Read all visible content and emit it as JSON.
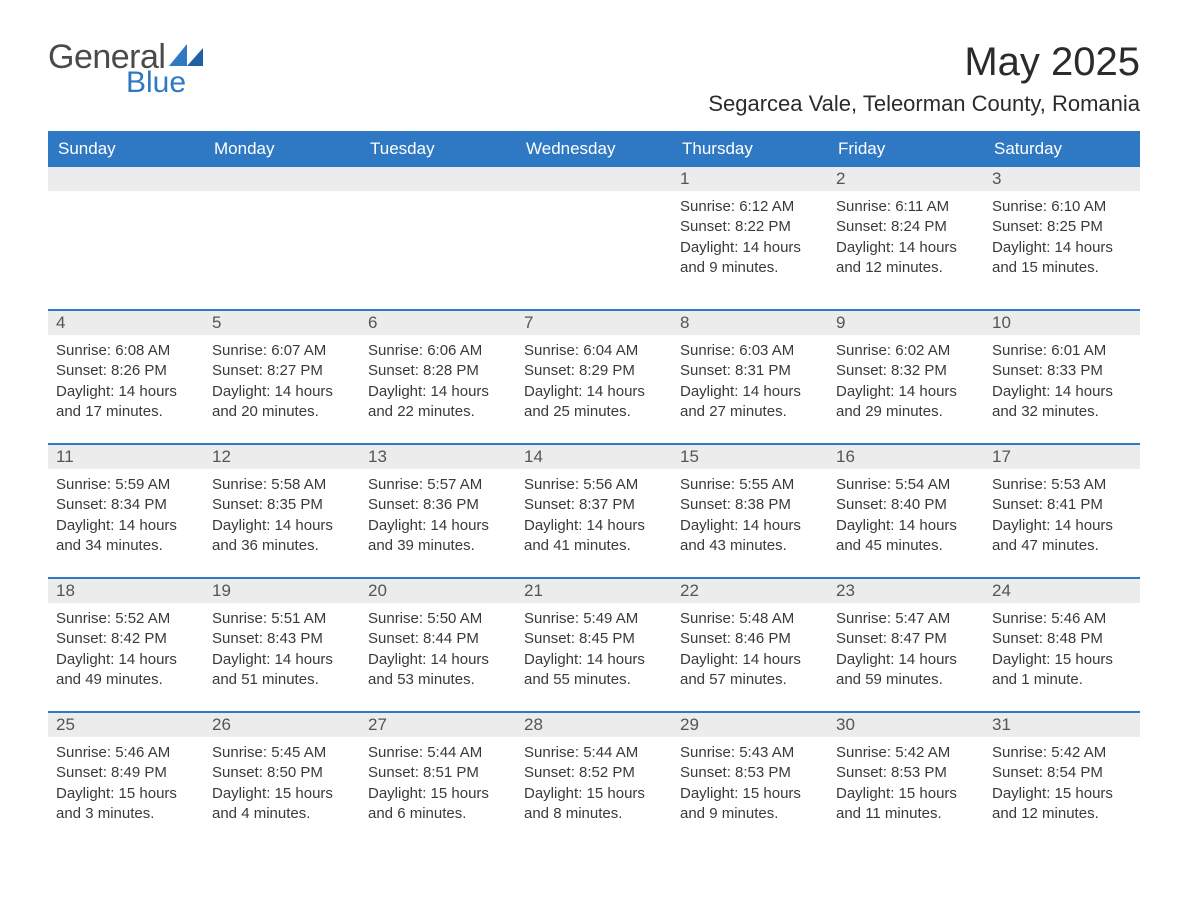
{
  "brand": {
    "general": "General",
    "blue": "Blue",
    "accent": "#2f78c4"
  },
  "title": "May 2025",
  "location": "Segarcea Vale, Teleorman County, Romania",
  "colors": {
    "header_bg": "#2f78c4",
    "header_text": "#ffffff",
    "daynum_bg": "#ececec",
    "text": "#3a3a3a",
    "page_bg": "#ffffff",
    "rule": "#2f78c4"
  },
  "fonts": {
    "title_size_pt": 30,
    "location_size_pt": 16,
    "header_size_pt": 13,
    "body_size_pt": 11
  },
  "day_names": [
    "Sunday",
    "Monday",
    "Tuesday",
    "Wednesday",
    "Thursday",
    "Friday",
    "Saturday"
  ],
  "weeks": [
    [
      {
        "n": "",
        "sunrise": "",
        "sunset": "",
        "daylight": ""
      },
      {
        "n": "",
        "sunrise": "",
        "sunset": "",
        "daylight": ""
      },
      {
        "n": "",
        "sunrise": "",
        "sunset": "",
        "daylight": ""
      },
      {
        "n": "",
        "sunrise": "",
        "sunset": "",
        "daylight": ""
      },
      {
        "n": "1",
        "sunrise": "Sunrise: 6:12 AM",
        "sunset": "Sunset: 8:22 PM",
        "daylight": "Daylight: 14 hours and 9 minutes."
      },
      {
        "n": "2",
        "sunrise": "Sunrise: 6:11 AM",
        "sunset": "Sunset: 8:24 PM",
        "daylight": "Daylight: 14 hours and 12 minutes."
      },
      {
        "n": "3",
        "sunrise": "Sunrise: 6:10 AM",
        "sunset": "Sunset: 8:25 PM",
        "daylight": "Daylight: 14 hours and 15 minutes."
      }
    ],
    [
      {
        "n": "4",
        "sunrise": "Sunrise: 6:08 AM",
        "sunset": "Sunset: 8:26 PM",
        "daylight": "Daylight: 14 hours and 17 minutes."
      },
      {
        "n": "5",
        "sunrise": "Sunrise: 6:07 AM",
        "sunset": "Sunset: 8:27 PM",
        "daylight": "Daylight: 14 hours and 20 minutes."
      },
      {
        "n": "6",
        "sunrise": "Sunrise: 6:06 AM",
        "sunset": "Sunset: 8:28 PM",
        "daylight": "Daylight: 14 hours and 22 minutes."
      },
      {
        "n": "7",
        "sunrise": "Sunrise: 6:04 AM",
        "sunset": "Sunset: 8:29 PM",
        "daylight": "Daylight: 14 hours and 25 minutes."
      },
      {
        "n": "8",
        "sunrise": "Sunrise: 6:03 AM",
        "sunset": "Sunset: 8:31 PM",
        "daylight": "Daylight: 14 hours and 27 minutes."
      },
      {
        "n": "9",
        "sunrise": "Sunrise: 6:02 AM",
        "sunset": "Sunset: 8:32 PM",
        "daylight": "Daylight: 14 hours and 29 minutes."
      },
      {
        "n": "10",
        "sunrise": "Sunrise: 6:01 AM",
        "sunset": "Sunset: 8:33 PM",
        "daylight": "Daylight: 14 hours and 32 minutes."
      }
    ],
    [
      {
        "n": "11",
        "sunrise": "Sunrise: 5:59 AM",
        "sunset": "Sunset: 8:34 PM",
        "daylight": "Daylight: 14 hours and 34 minutes."
      },
      {
        "n": "12",
        "sunrise": "Sunrise: 5:58 AM",
        "sunset": "Sunset: 8:35 PM",
        "daylight": "Daylight: 14 hours and 36 minutes."
      },
      {
        "n": "13",
        "sunrise": "Sunrise: 5:57 AM",
        "sunset": "Sunset: 8:36 PM",
        "daylight": "Daylight: 14 hours and 39 minutes."
      },
      {
        "n": "14",
        "sunrise": "Sunrise: 5:56 AM",
        "sunset": "Sunset: 8:37 PM",
        "daylight": "Daylight: 14 hours and 41 minutes."
      },
      {
        "n": "15",
        "sunrise": "Sunrise: 5:55 AM",
        "sunset": "Sunset: 8:38 PM",
        "daylight": "Daylight: 14 hours and 43 minutes."
      },
      {
        "n": "16",
        "sunrise": "Sunrise: 5:54 AM",
        "sunset": "Sunset: 8:40 PM",
        "daylight": "Daylight: 14 hours and 45 minutes."
      },
      {
        "n": "17",
        "sunrise": "Sunrise: 5:53 AM",
        "sunset": "Sunset: 8:41 PM",
        "daylight": "Daylight: 14 hours and 47 minutes."
      }
    ],
    [
      {
        "n": "18",
        "sunrise": "Sunrise: 5:52 AM",
        "sunset": "Sunset: 8:42 PM",
        "daylight": "Daylight: 14 hours and 49 minutes."
      },
      {
        "n": "19",
        "sunrise": "Sunrise: 5:51 AM",
        "sunset": "Sunset: 8:43 PM",
        "daylight": "Daylight: 14 hours and 51 minutes."
      },
      {
        "n": "20",
        "sunrise": "Sunrise: 5:50 AM",
        "sunset": "Sunset: 8:44 PM",
        "daylight": "Daylight: 14 hours and 53 minutes."
      },
      {
        "n": "21",
        "sunrise": "Sunrise: 5:49 AM",
        "sunset": "Sunset: 8:45 PM",
        "daylight": "Daylight: 14 hours and 55 minutes."
      },
      {
        "n": "22",
        "sunrise": "Sunrise: 5:48 AM",
        "sunset": "Sunset: 8:46 PM",
        "daylight": "Daylight: 14 hours and 57 minutes."
      },
      {
        "n": "23",
        "sunrise": "Sunrise: 5:47 AM",
        "sunset": "Sunset: 8:47 PM",
        "daylight": "Daylight: 14 hours and 59 minutes."
      },
      {
        "n": "24",
        "sunrise": "Sunrise: 5:46 AM",
        "sunset": "Sunset: 8:48 PM",
        "daylight": "Daylight: 15 hours and 1 minute."
      }
    ],
    [
      {
        "n": "25",
        "sunrise": "Sunrise: 5:46 AM",
        "sunset": "Sunset: 8:49 PM",
        "daylight": "Daylight: 15 hours and 3 minutes."
      },
      {
        "n": "26",
        "sunrise": "Sunrise: 5:45 AM",
        "sunset": "Sunset: 8:50 PM",
        "daylight": "Daylight: 15 hours and 4 minutes."
      },
      {
        "n": "27",
        "sunrise": "Sunrise: 5:44 AM",
        "sunset": "Sunset: 8:51 PM",
        "daylight": "Daylight: 15 hours and 6 minutes."
      },
      {
        "n": "28",
        "sunrise": "Sunrise: 5:44 AM",
        "sunset": "Sunset: 8:52 PM",
        "daylight": "Daylight: 15 hours and 8 minutes."
      },
      {
        "n": "29",
        "sunrise": "Sunrise: 5:43 AM",
        "sunset": "Sunset: 8:53 PM",
        "daylight": "Daylight: 15 hours and 9 minutes."
      },
      {
        "n": "30",
        "sunrise": "Sunrise: 5:42 AM",
        "sunset": "Sunset: 8:53 PM",
        "daylight": "Daylight: 15 hours and 11 minutes."
      },
      {
        "n": "31",
        "sunrise": "Sunrise: 5:42 AM",
        "sunset": "Sunset: 8:54 PM",
        "daylight": "Daylight: 15 hours and 12 minutes."
      }
    ]
  ]
}
